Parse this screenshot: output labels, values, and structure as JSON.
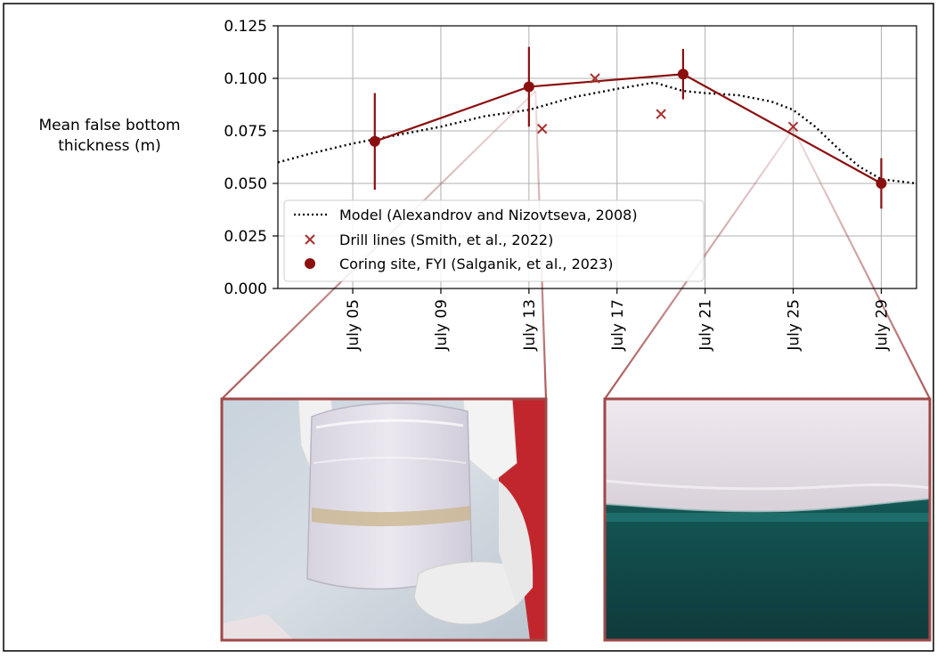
{
  "chart_data": {
    "type": "line",
    "ylabel": "Mean false bottom thickness (m)",
    "ylabel_lines": [
      "Mean false bottom",
      "thickness (m)"
    ],
    "xlabel": "",
    "x_unit": "day of July",
    "xlim": [
      1.6,
      30.6
    ],
    "ylim": [
      0.0,
      0.125
    ],
    "grid": true,
    "x_ticks": [
      {
        "day": 5,
        "label": "July 05"
      },
      {
        "day": 9,
        "label": "July 09"
      },
      {
        "day": 13,
        "label": "July 13"
      },
      {
        "day": 17,
        "label": "July 17"
      },
      {
        "day": 21,
        "label": "July 21"
      },
      {
        "day": 25,
        "label": "July 25"
      },
      {
        "day": 29,
        "label": "July 29"
      }
    ],
    "y_ticks": [
      {
        "value": 0.0,
        "label": "0.000"
      },
      {
        "value": 0.025,
        "label": "0.025"
      },
      {
        "value": 0.05,
        "label": "0.050"
      },
      {
        "value": 0.075,
        "label": "0.075"
      },
      {
        "value": 0.1,
        "label": "0.100"
      },
      {
        "value": 0.125,
        "label": "0.125"
      }
    ],
    "legend_position": "lower-left",
    "series": [
      {
        "name": "Model (Alexandrov and Nizovtseva, 2008)",
        "style": "dotted",
        "color": "#000000",
        "points": [
          [
            1.6,
            0.06
          ],
          [
            3.0,
            0.064
          ],
          [
            5.0,
            0.069
          ],
          [
            7.0,
            0.073
          ],
          [
            9.0,
            0.077
          ],
          [
            11.0,
            0.082
          ],
          [
            13.0,
            0.085
          ],
          [
            15.0,
            0.091
          ],
          [
            17.0,
            0.095
          ],
          [
            18.7,
            0.098
          ],
          [
            20.0,
            0.094
          ],
          [
            21.0,
            0.093
          ],
          [
            22.5,
            0.092
          ],
          [
            24.0,
            0.089
          ],
          [
            25.0,
            0.085
          ],
          [
            26.0,
            0.077
          ],
          [
            27.0,
            0.067
          ],
          [
            28.0,
            0.058
          ],
          [
            29.0,
            0.052
          ],
          [
            30.6,
            0.05
          ]
        ]
      },
      {
        "name": "Drill lines (Smith, et al., 2022)",
        "style": "x-marker",
        "color": "#a83232",
        "points": [
          [
            13.6,
            0.076
          ],
          [
            16.0,
            0.1
          ],
          [
            19.0,
            0.083
          ],
          [
            25.0,
            0.077
          ]
        ]
      },
      {
        "name": "Coring site, FYI (Salganik, et al., 2023)",
        "style": "line-with-errorbars",
        "color": "#8b0f0f",
        "points": [
          {
            "x": 6.0,
            "y": 0.07,
            "err": 0.023
          },
          {
            "x": 13.0,
            "y": 0.096,
            "err": 0.019
          },
          {
            "x": 20.0,
            "y": 0.102,
            "err": 0.012
          },
          {
            "x": 29.0,
            "y": 0.05,
            "err": 0.012
          }
        ]
      }
    ]
  },
  "inset_photos": [
    {
      "name": "ice core sample held in gloved hands",
      "linked_day": 13.3
    },
    {
      "name": "underwater view of false bottom below sea ice",
      "linked_day": 25.0
    }
  ],
  "colors": {
    "accent": "#8b0f0f",
    "drill": "#a83232",
    "photo_frame": "#a04848",
    "grid": "#b0b0b0"
  }
}
